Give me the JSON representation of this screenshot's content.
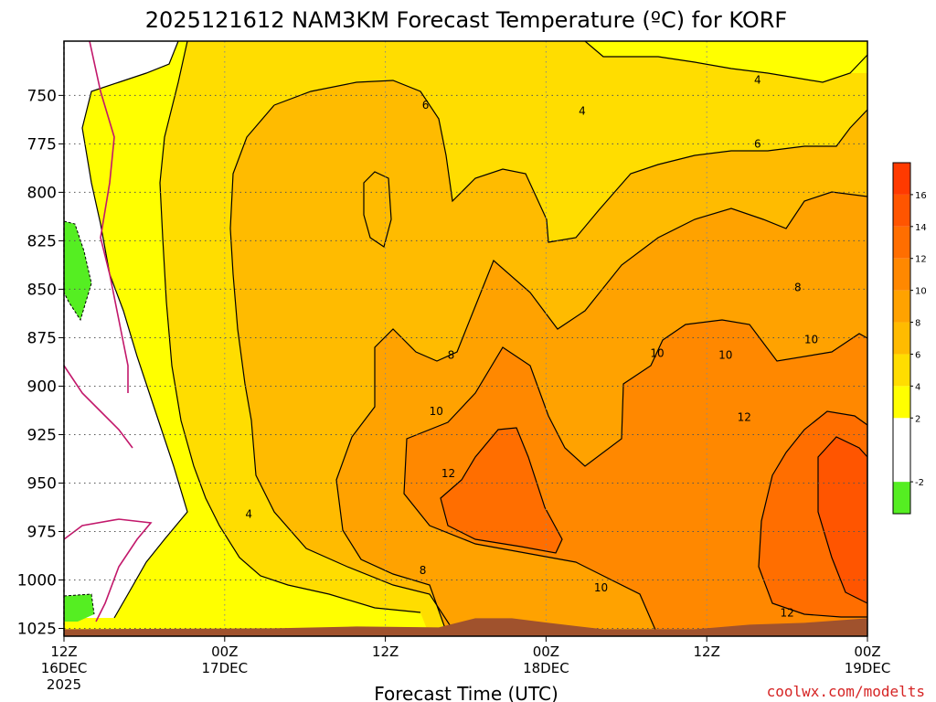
{
  "chart_data": {
    "type": "heatmap",
    "title": "2025121612 NAM3KM Forecast Temperature (ºC) for KORF",
    "xlabel": "Forecast Time (UTC)",
    "ylabel": "",
    "credit": "coolwx.com/modelts",
    "x_ticks": [
      {
        "hour": 0,
        "line1": "12Z",
        "line2": "16DEC",
        "line3": "2025"
      },
      {
        "hour": 12,
        "line1": "00Z",
        "line2": "17DEC",
        "line3": ""
      },
      {
        "hour": 24,
        "line1": "12Z",
        "line2": "",
        "line3": ""
      },
      {
        "hour": 36,
        "line1": "00Z",
        "line2": "18DEC",
        "line3": ""
      },
      {
        "hour": 48,
        "line1": "12Z",
        "line2": "",
        "line3": ""
      },
      {
        "hour": 60,
        "line1": "00Z",
        "line2": "19DEC",
        "line3": ""
      }
    ],
    "xlim": [
      0,
      60
    ],
    "y_pressure_levels": [
      750,
      775,
      800,
      825,
      850,
      875,
      900,
      925,
      950,
      975,
      1000,
      1025
    ],
    "ylim": [
      1029,
      722
    ],
    "colorbar": {
      "tick_labels": [
        "-2",
        "2",
        "4",
        "6",
        "8",
        "10",
        "12",
        "14",
        "16"
      ],
      "bins": [
        {
          "min": -4,
          "max": -2,
          "color": "#55ee22"
        },
        {
          "min": -2,
          "max": 2,
          "color": "#ffffff"
        },
        {
          "min": 2,
          "max": 4,
          "color": "#ffff00"
        },
        {
          "min": 4,
          "max": 6,
          "color": "#ffdd00"
        },
        {
          "min": 6,
          "max": 8,
          "color": "#ffbb00"
        },
        {
          "min": 8,
          "max": 10,
          "color": "#ffa200"
        },
        {
          "min": 10,
          "max": 12,
          "color": "#ff8800"
        },
        {
          "min": 12,
          "max": 14,
          "color": "#ff6e00"
        },
        {
          "min": 14,
          "max": 16,
          "color": "#ff5500"
        },
        {
          "min": 16,
          "max": 18,
          "color": "#ff3a00"
        }
      ]
    },
    "contour_labels": [
      {
        "value": "6",
        "hour": 27.0,
        "pressure": 755
      },
      {
        "value": "4",
        "hour": 38.7,
        "pressure": 758
      },
      {
        "value": "4",
        "hour": 51.8,
        "pressure": 742
      },
      {
        "value": "6",
        "hour": 51.8,
        "pressure": 775
      },
      {
        "value": "8",
        "hour": 54.8,
        "pressure": 849
      },
      {
        "value": "10",
        "hour": 55.8,
        "pressure": 876
      },
      {
        "value": "8",
        "hour": 28.9,
        "pressure": 884
      },
      {
        "value": "10",
        "hour": 44.3,
        "pressure": 883
      },
      {
        "value": "10",
        "hour": 49.4,
        "pressure": 884
      },
      {
        "value": "10",
        "hour": 27.8,
        "pressure": 913
      },
      {
        "value": "12",
        "hour": 50.8,
        "pressure": 916
      },
      {
        "value": "12",
        "hour": 28.7,
        "pressure": 945
      },
      {
        "value": "4",
        "hour": 13.8,
        "pressure": 966
      },
      {
        "value": "8",
        "hour": 26.8,
        "pressure": 995
      },
      {
        "value": "10",
        "hour": 40.1,
        "pressure": 1004
      },
      {
        "value": "12",
        "hour": 54.0,
        "pressure": 1017
      }
    ],
    "ground": {
      "color": "#a0522d",
      "pressure_top": 1024
    }
  }
}
